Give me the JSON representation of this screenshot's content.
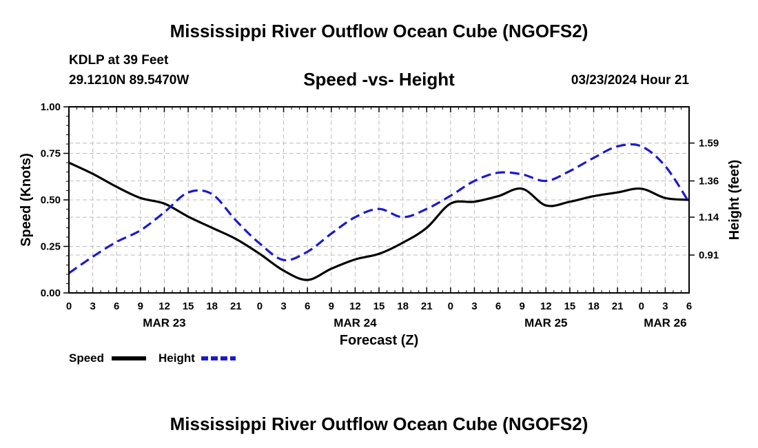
{
  "header": {
    "title": "Mississippi River Outflow Ocean Cube (NGOFS2)",
    "station_line1": "KDLP at 39 Feet",
    "station_line2": "29.1210N  89.5470W",
    "subtitle": "Speed -vs- Height",
    "datetime": "03/23/2024 Hour 21"
  },
  "footer": {
    "title": "Mississippi River Outflow Ocean Cube (NGOFS2)"
  },
  "colors": {
    "speed": "#000000",
    "height": "#1a1acc",
    "grid": "#bbbbbb"
  },
  "chart_data": {
    "type": "line",
    "title": "Speed -vs- Height",
    "xlabel": "Forecast (Z)",
    "ylabel": "Speed (Knots)",
    "y2label": "Height (feet)",
    "xlim": [
      0,
      78
    ],
    "ylim": [
      0,
      1
    ],
    "y2lim": [
      0.68,
      1.81
    ],
    "grid": true,
    "x_tick_labels": [
      "0",
      "3",
      "6",
      "9",
      "12",
      "15",
      "18",
      "21",
      "0",
      "3",
      "6",
      "9",
      "12",
      "15",
      "18",
      "21",
      "0",
      "3",
      "6",
      "9",
      "12",
      "15",
      "18",
      "21",
      "0",
      "3",
      "6"
    ],
    "date_labels": [
      {
        "label": "MAR 23",
        "x": 12
      },
      {
        "label": "MAR 24",
        "x": 36
      },
      {
        "label": "MAR 25",
        "x": 60
      },
      {
        "label": "MAR 26",
        "x": 75
      }
    ],
    "y_tick_labels": [
      "0.00",
      "0.25",
      "0.50",
      "0.75",
      "1.00"
    ],
    "y_tick_values": [
      0,
      0.25,
      0.5,
      0.75,
      1.0
    ],
    "y2_tick_labels": [
      "0.91",
      "1.14",
      "1.36",
      "1.59"
    ],
    "y2_tick_values": [
      0.91,
      1.14,
      1.36,
      1.59
    ],
    "legend": [
      {
        "name": "Speed",
        "style": "solid"
      },
      {
        "name": "Height",
        "style": "dashed"
      }
    ],
    "series": [
      {
        "name": "Speed",
        "axis": "left",
        "x": [
          0,
          3,
          6,
          9,
          12,
          15,
          18,
          21,
          24,
          27,
          30,
          33,
          36,
          39,
          42,
          45,
          48,
          51,
          54,
          57,
          60,
          63,
          66,
          69,
          72,
          75,
          78
        ],
        "values": [
          0.7,
          0.64,
          0.57,
          0.51,
          0.48,
          0.41,
          0.35,
          0.29,
          0.21,
          0.12,
          0.07,
          0.13,
          0.18,
          0.21,
          0.27,
          0.35,
          0.48,
          0.49,
          0.52,
          0.56,
          0.47,
          0.49,
          0.52,
          0.54,
          0.56,
          0.51,
          0.5
        ]
      },
      {
        "name": "Height",
        "axis": "right",
        "x": [
          0,
          3,
          6,
          9,
          12,
          15,
          18,
          21,
          24,
          27,
          30,
          33,
          36,
          39,
          42,
          45,
          48,
          51,
          54,
          57,
          60,
          63,
          66,
          69,
          72,
          75,
          78
        ],
        "values": [
          0.8,
          0.9,
          0.99,
          1.06,
          1.17,
          1.29,
          1.28,
          1.12,
          0.98,
          0.88,
          0.93,
          1.04,
          1.14,
          1.19,
          1.14,
          1.19,
          1.27,
          1.36,
          1.41,
          1.4,
          1.36,
          1.42,
          1.5,
          1.57,
          1.57,
          1.45,
          1.23
        ]
      }
    ]
  }
}
